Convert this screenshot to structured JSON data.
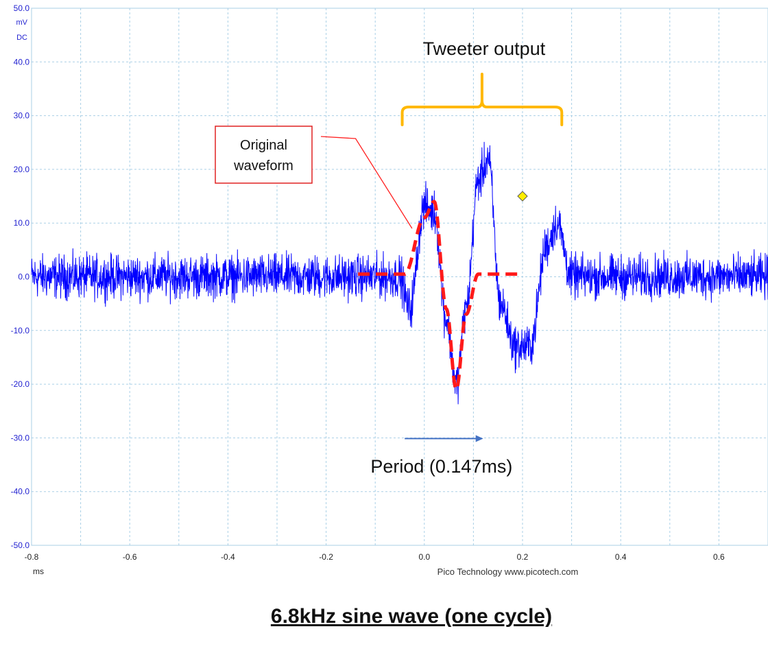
{
  "chart_data": {
    "type": "line",
    "title": "",
    "xlabel": "ms",
    "ylabel": "mV",
    "ylabel_lines": [
      "mV",
      "DC"
    ],
    "xlim": [
      -0.8,
      0.7
    ],
    "ylim": [
      -50.0,
      50.0
    ],
    "x_ticks": [
      -0.8,
      -0.6,
      -0.4,
      -0.2,
      0.0,
      0.2,
      0.4,
      0.6
    ],
    "x_tick_labels": [
      "-0.8",
      "-0.6",
      "-0.4",
      "-0.2",
      "0.0",
      "0.2",
      "0.4",
      "0.6"
    ],
    "y_ticks": [
      50,
      40,
      30,
      20,
      10,
      0,
      -10,
      -20,
      -30,
      -40,
      -50
    ],
    "y_tick_labels": [
      "50.0",
      "40.0",
      "30.0",
      "20.0",
      "10.0",
      "0.0",
      "-10.0",
      "-20.0",
      "-30.0",
      "-40.0",
      "-50.0"
    ],
    "grid": true,
    "footer": "Pico Technology   www.picotech.com",
    "colors": {
      "signal": "#0000ff",
      "original": "#ff1a1a",
      "bracket": "#ffb800",
      "arrow": "#4472c4",
      "axis_text": "#1f1fd0",
      "grid": "#a9cfe6"
    },
    "series": [
      {
        "role": "measured",
        "color": "#0000ff",
        "noise_amplitude": 3.0,
        "x": [
          -0.8,
          -0.05,
          -0.03,
          0.0,
          0.02,
          0.045,
          0.065,
          0.085,
          0.11,
          0.13,
          0.155,
          0.185,
          0.215,
          0.25,
          0.27,
          0.3,
          0.33,
          0.7
        ],
        "y": [
          0,
          0,
          -6,
          13,
          12,
          -8,
          -20,
          -6,
          18,
          22,
          -5,
          -13,
          -13,
          6,
          10,
          0,
          0,
          0
        ]
      },
      {
        "role": "original",
        "color": "#ff1a1a",
        "dashed": true,
        "x": [
          -0.135,
          -0.04,
          0.0,
          0.02,
          0.045,
          0.065,
          0.085,
          0.11,
          0.12,
          0.15,
          0.19
        ],
        "y": [
          0.5,
          0.5,
          11,
          14,
          -6,
          -21,
          -7,
          0.5,
          0.5,
          0.5,
          0.5
        ]
      }
    ],
    "markers": [
      {
        "x": 0.2,
        "y": 15,
        "shape": "diamond",
        "color": "#ffee00"
      }
    ],
    "annotations": {
      "tweeter_label": "Tweeter output",
      "tweeter_range": [
        -0.045,
        0.28
      ],
      "original_label_lines": [
        "Original",
        "waveform"
      ],
      "period_label": "Period (0.147ms)",
      "period_arrow": {
        "x": [
          -0.04,
          0.12
        ],
        "y": -30
      }
    }
  },
  "caption": "6.8kHz sine wave (one cycle)"
}
